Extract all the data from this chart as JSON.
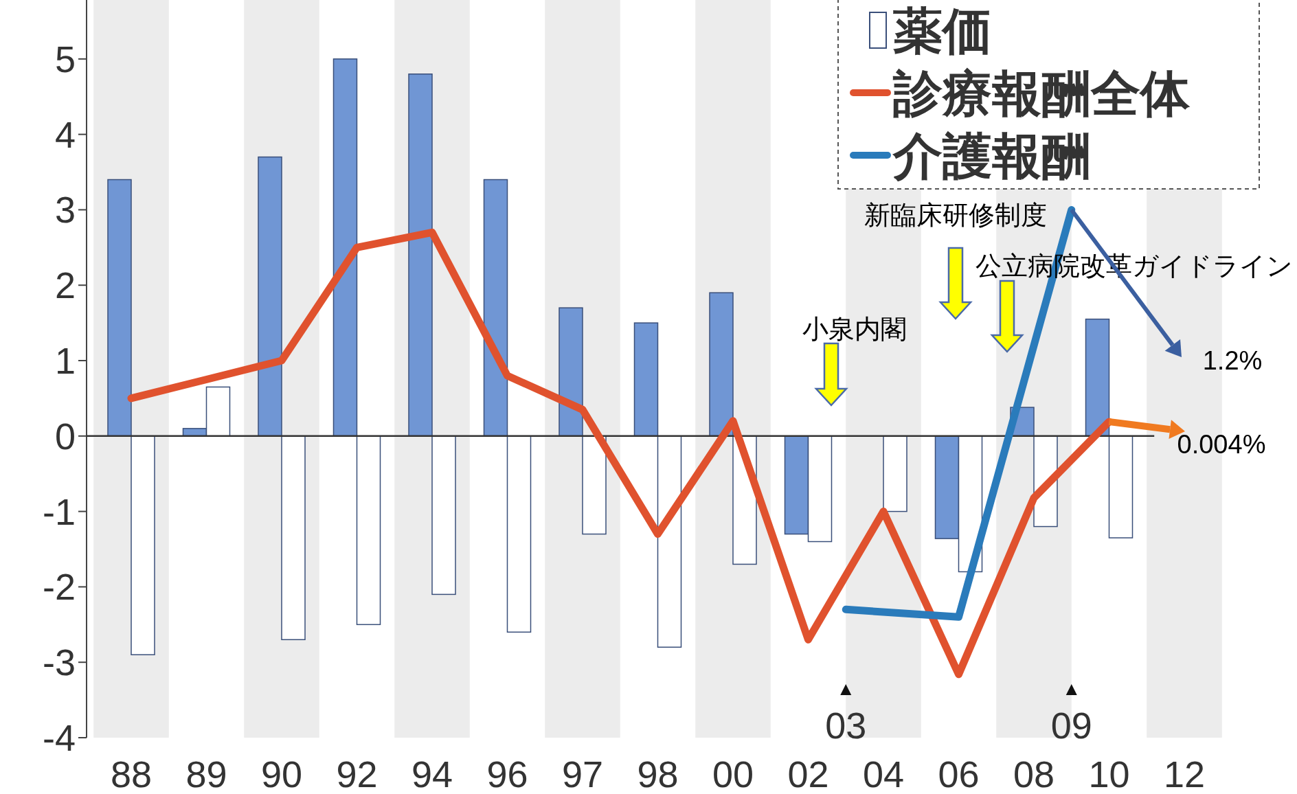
{
  "chart_data": {
    "type": "bar",
    "categories": [
      "88",
      "89",
      "90",
      "92",
      "94",
      "96",
      "97",
      "98",
      "00",
      "02",
      "03",
      "04",
      "06",
      "08",
      "09",
      "10",
      "12"
    ],
    "series": [
      {
        "color": "#7096d4",
        "values": [
          3.4,
          0.1,
          3.7,
          5.0,
          4.8,
          3.4,
          1.7,
          1.5,
          1.9,
          -1.3,
          null,
          0,
          -1.36,
          0.38,
          null,
          1.55,
          null
        ]
      },
      {
        "name": "薬価",
        "color": "#ffffff",
        "values": [
          -2.9,
          0.65,
          -2.7,
          -2.5,
          -2.1,
          -2.6,
          -1.3,
          -2.8,
          -1.7,
          -1.4,
          null,
          -1.0,
          -1.8,
          -1.2,
          null,
          -1.35,
          null
        ]
      },
      {
        "name": "診療報酬全体",
        "type": "line",
        "color": "#e0522e",
        "values": [
          0.5,
          0.75,
          1.0,
          2.5,
          2.7,
          0.8,
          0.35,
          -1.3,
          0.2,
          -2.7,
          null,
          -1.0,
          -3.16,
          -0.82,
          null,
          0.19,
          null
        ]
      },
      {
        "name": "介護報酬",
        "type": "line",
        "color": "#2a7bbb",
        "values": [
          null,
          null,
          null,
          null,
          null,
          null,
          null,
          null,
          null,
          null,
          -2.3,
          null,
          -2.4,
          null,
          3.0,
          null,
          null
        ]
      }
    ],
    "ylim": [
      -4,
      5.8
    ],
    "yticks": [
      -4,
      -3,
      -2,
      -1,
      0,
      1,
      2,
      3,
      4,
      5
    ],
    "legend": "top right",
    "bands": [
      {
        "axis": "x",
        "from": "88",
        "to": "88",
        "color": "#ececec"
      },
      {
        "axis": "x",
        "from": "90",
        "to": "90",
        "color": "#ececec"
      },
      {
        "axis": "x",
        "from": "94",
        "to": "94",
        "color": "#ececec"
      },
      {
        "axis": "x",
        "from": "97",
        "to": "97",
        "color": "#ececec"
      },
      {
        "axis": "x",
        "from": "00",
        "to": "00",
        "color": "#ececec"
      },
      {
        "axis": "x",
        "from": "04",
        "to": "04",
        "color": "#ececec"
      },
      {
        "axis": "x",
        "from": "08",
        "to": "08",
        "color": "#ececec"
      },
      {
        "axis": "x",
        "from": "12",
        "to": "12",
        "color": "#ececec"
      }
    ],
    "annotations": [
      "新臨床研修制度",
      "公立病院改革ガイドライン",
      "小泉内閣",
      {
        "text": "1.2%",
        "x": "09",
        "y": 3.0
      },
      {
        "text": "0.004%",
        "x": "10",
        "y": 0.19
      }
    ]
  }
}
